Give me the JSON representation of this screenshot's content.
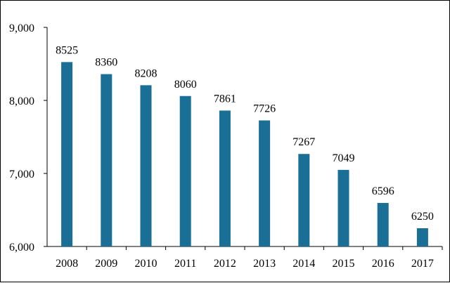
{
  "chart_data": {
    "type": "bar",
    "categories": [
      "2008",
      "2009",
      "2010",
      "2011",
      "2012",
      "2013",
      "2014",
      "2015",
      "2016",
      "2017"
    ],
    "values": [
      8525,
      8360,
      8208,
      8060,
      7861,
      7726,
      7267,
      7049,
      6596,
      6250
    ],
    "title": "",
    "xlabel": "",
    "ylabel": "",
    "ylim": [
      6000,
      9000
    ],
    "yticks": [
      6000,
      7000,
      8000,
      9000
    ],
    "ytick_labels": [
      "6,000",
      "7,000",
      "8,000",
      "9,000"
    ],
    "data_labels": [
      "8525",
      "8360",
      "8208",
      "8060",
      "7861",
      "7726",
      "7267",
      "7049",
      "6596",
      "6250"
    ],
    "grid": false,
    "legend": "none",
    "bar_color": "#1a6f96"
  }
}
